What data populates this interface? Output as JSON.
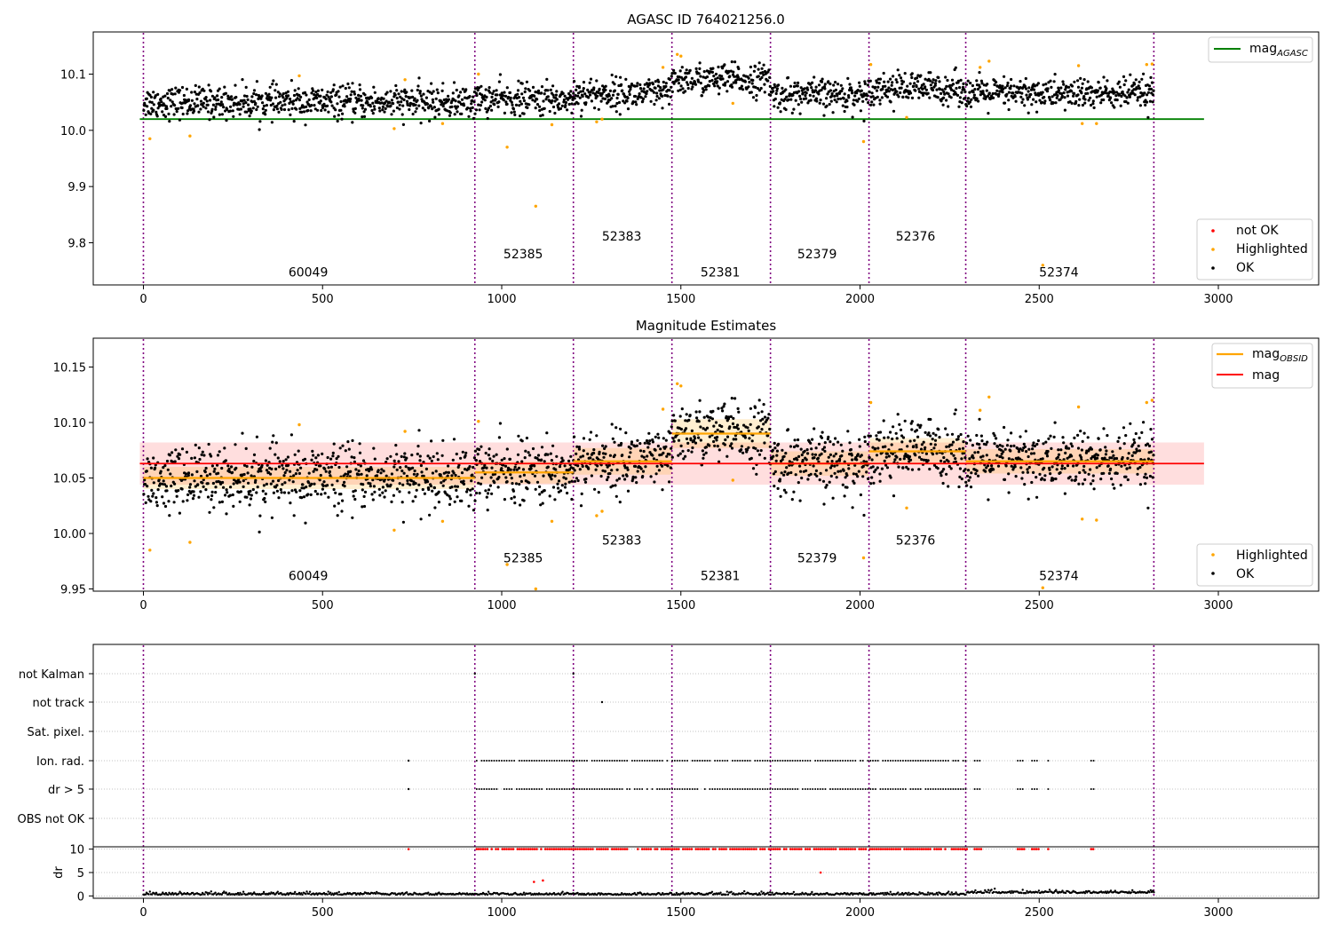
{
  "figure_title": "AGASC ID 764021256.0",
  "obsid_labels": [
    "60049",
    "52385",
    "52383",
    "52381",
    "52379",
    "52376",
    "52374"
  ],
  "chart_data": [
    {
      "type": "scatter",
      "title": "AGASC ID 764021256.0",
      "xlim": [
        -140,
        3280
      ],
      "ylim": [
        9.725,
        10.175
      ],
      "xticks": [
        0,
        500,
        1000,
        1500,
        2000,
        2500,
        3000
      ],
      "yticks": [
        9.8,
        9.9,
        10.0,
        10.1
      ],
      "ytick_labels": [
        "9.8",
        "9.9",
        "10.0",
        "10.1"
      ],
      "obsid_boundaries": [
        0,
        925,
        1200,
        1475,
        1750,
        2025,
        2295,
        2820
      ],
      "obsid_labels": [
        {
          "text": "60049",
          "x": 460,
          "y": 9.74
        },
        {
          "text": "52385",
          "x": 1060,
          "y": 9.772
        },
        {
          "text": "52383",
          "x": 1335,
          "y": 9.804
        },
        {
          "text": "52381",
          "x": 1610,
          "y": 9.74
        },
        {
          "text": "52379",
          "x": 1880,
          "y": 9.772
        },
        {
          "text": "52376",
          "x": 2155,
          "y": 9.804
        },
        {
          "text": "52374",
          "x": 2555,
          "y": 9.74
        }
      ],
      "series": [
        {
          "name": "OK",
          "color": "#000000",
          "segment_means": [
            10.05,
            10.055,
            10.065,
            10.09,
            10.063,
            10.075,
            10.065
          ]
        },
        {
          "name": "Highlighted",
          "color": "#ffa500",
          "values": [
            [
              18,
              9.985
            ],
            [
              130,
              9.99
            ],
            [
              435,
              10.097
            ],
            [
              700,
              10.003
            ],
            [
              730,
              10.09
            ],
            [
              835,
              10.012
            ],
            [
              935,
              10.1
            ],
            [
              1015,
              9.97
            ],
            [
              1095,
              9.865
            ],
            [
              1140,
              10.01
            ],
            [
              1265,
              10.015
            ],
            [
              1280,
              10.02
            ],
            [
              1450,
              10.112
            ],
            [
              1490,
              10.135
            ],
            [
              1500,
              10.132
            ],
            [
              1645,
              10.048
            ],
            [
              2010,
              9.98
            ],
            [
              2030,
              10.117
            ],
            [
              2130,
              10.023
            ],
            [
              2335,
              10.112
            ],
            [
              2360,
              10.123
            ],
            [
              2510,
              9.76
            ],
            [
              2610,
              10.115
            ],
            [
              2620,
              10.012
            ],
            [
              2660,
              10.012
            ],
            [
              2800,
              10.117
            ],
            [
              2815,
              10.118
            ]
          ]
        },
        {
          "name": "not OK",
          "color": "#ff0000",
          "values": []
        }
      ],
      "lines": [
        {
          "name": "mag_AGASC",
          "color": "#008000",
          "y": 10.02,
          "x": [
            -10,
            2960
          ]
        }
      ],
      "legend": [
        "mag_AGASC",
        "not OK",
        "Highlighted",
        "OK"
      ],
      "legend_placement": "top-right / bottom-right"
    },
    {
      "type": "scatter",
      "title": "Magnitude Estimates",
      "xlim": [
        -140,
        3280
      ],
      "ylim": [
        9.948,
        10.176
      ],
      "xticks": [
        0,
        500,
        1000,
        1500,
        2000,
        2500,
        3000
      ],
      "yticks": [
        9.95,
        10.0,
        10.05,
        10.1,
        10.15
      ],
      "ytick_labels": [
        "9.95",
        "10.00",
        "10.05",
        "10.10",
        "10.15"
      ],
      "obsid_boundaries": [
        0,
        925,
        1200,
        1475,
        1750,
        2025,
        2295,
        2820
      ],
      "obsid_labels": [
        {
          "text": "60049",
          "x": 460,
          "y": 9.958
        },
        {
          "text": "52385",
          "x": 1060,
          "y": 9.974
        },
        {
          "text": "52383",
          "x": 1335,
          "y": 9.99
        },
        {
          "text": "52381",
          "x": 1610,
          "y": 9.958
        },
        {
          "text": "52379",
          "x": 1880,
          "y": 9.974
        },
        {
          "text": "52376",
          "x": 2155,
          "y": 9.99
        },
        {
          "text": "52374",
          "x": 2555,
          "y": 9.958
        }
      ],
      "mag": 10.063,
      "mag_band": [
        10.044,
        10.082
      ],
      "mag_obsid": [
        {
          "x0": 0,
          "x1": 925,
          "y": 10.05,
          "band": [
            10.04,
            10.06
          ]
        },
        {
          "x0": 925,
          "x1": 1200,
          "y": 10.055,
          "band": [
            10.045,
            10.065
          ]
        },
        {
          "x0": 1200,
          "x1": 1475,
          "y": 10.065,
          "band": [
            10.053,
            10.077
          ]
        },
        {
          "x0": 1475,
          "x1": 1750,
          "y": 10.09,
          "band": [
            10.077,
            10.103
          ]
        },
        {
          "x0": 1750,
          "x1": 2025,
          "y": 10.063,
          "band": [
            10.052,
            10.074
          ]
        },
        {
          "x0": 2025,
          "x1": 2295,
          "y": 10.074,
          "band": [
            10.062,
            10.086
          ]
        },
        {
          "x0": 2295,
          "x1": 2820,
          "y": 10.065,
          "band": [
            10.054,
            10.076
          ]
        }
      ],
      "series": [
        {
          "name": "OK",
          "color": "#000000",
          "segment_means": [
            10.05,
            10.055,
            10.065,
            10.09,
            10.063,
            10.075,
            10.065
          ]
        },
        {
          "name": "Highlighted",
          "color": "#ffa500",
          "values": [
            [
              18,
              9.985
            ],
            [
              130,
              9.992
            ],
            [
              435,
              10.098
            ],
            [
              700,
              10.003
            ],
            [
              730,
              10.092
            ],
            [
              835,
              10.011
            ],
            [
              935,
              10.101
            ],
            [
              1015,
              9.972
            ],
            [
              1095,
              9.95
            ],
            [
              1140,
              10.011
            ],
            [
              1265,
              10.016
            ],
            [
              1280,
              10.02
            ],
            [
              1450,
              10.112
            ],
            [
              1490,
              10.135
            ],
            [
              1500,
              10.133
            ],
            [
              1645,
              10.048
            ],
            [
              2010,
              9.978
            ],
            [
              2030,
              10.118
            ],
            [
              2130,
              10.023
            ],
            [
              2335,
              10.111
            ],
            [
              2360,
              10.123
            ],
            [
              2510,
              9.951
            ],
            [
              2610,
              10.114
            ],
            [
              2620,
              10.013
            ],
            [
              2660,
              10.012
            ],
            [
              2800,
              10.118
            ],
            [
              2815,
              10.12
            ]
          ]
        }
      ],
      "legend": [
        "mag_OBSID",
        "mag",
        "Highlighted",
        "OK"
      ],
      "legend_placement": "top-right / bottom-right"
    },
    {
      "type": "scatter",
      "title": "",
      "xlim": [
        -140,
        3280
      ],
      "xticks": [
        0,
        500,
        1000,
        1500,
        2000,
        2500,
        3000
      ],
      "categories": [
        "not Kalman",
        "not track",
        "Sat. pixel.",
        "Ion. rad.",
        "dr > 5",
        "OBS not OK"
      ],
      "flag_points": {
        "not Kalman": [
          925,
          1200
        ],
        "not track": [
          1280
        ],
        "Sat. pixel.": [],
        "Ion. rad.": [
          740
        ],
        "dr > 5": [
          740
        ],
        "OBS not OK": []
      },
      "flag_ranges": {
        "Ion. rad.": [
          [
            930,
            2300
          ],
          [
            2320,
            2340
          ],
          [
            2440,
            2460
          ],
          [
            2480,
            2500
          ],
          [
            2525,
            2525
          ],
          [
            2645,
            2655
          ]
        ],
        "dr > 5": [
          [
            930,
            2300
          ],
          [
            2320,
            2340
          ],
          [
            2440,
            2460
          ],
          [
            2480,
            2500
          ],
          [
            2525,
            2525
          ],
          [
            2645,
            2655
          ]
        ]
      },
      "dr_ylim": [
        -0.5,
        10.5
      ],
      "dr_yticks": [
        0,
        5,
        10
      ],
      "dr_ylabel": "dr",
      "dr_high_points_red": [
        [
          740,
          10
        ],
        [
          1090,
          3
        ],
        [
          1115,
          3.3
        ],
        [
          1890,
          5
        ]
      ],
      "obsid_boundaries": [
        0,
        925,
        1200,
        1475,
        1750,
        2025,
        2295,
        2820
      ]
    }
  ],
  "legend_labels": {
    "mag_agasc_base": "mag",
    "mag_agasc_sub": "AGASC",
    "mag_obsid_base": "mag",
    "mag_obsid_sub": "OBSID",
    "mag": "mag",
    "not_ok": "not OK",
    "highlighted": "Highlighted",
    "ok": "OK"
  },
  "colors": {
    "ok": "#000000",
    "highlighted": "#ffa500",
    "not_ok": "#ff0000",
    "mag_agasc": "#008000",
    "mag": "#ff0000",
    "mag_obsid": "#ffa500",
    "boundary": "#800080"
  }
}
